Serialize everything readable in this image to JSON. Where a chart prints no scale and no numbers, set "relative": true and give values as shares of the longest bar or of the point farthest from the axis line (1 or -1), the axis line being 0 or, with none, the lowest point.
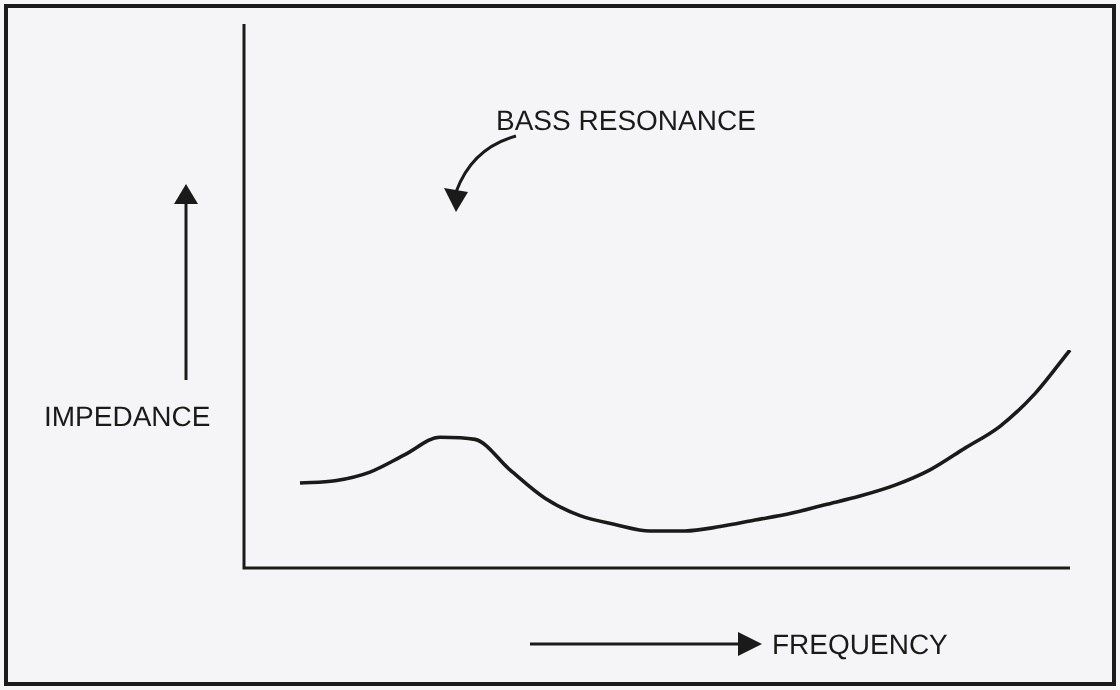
{
  "chart_data": {
    "type": "line",
    "relative": true,
    "xlabel": "FREQUENCY",
    "ylabel": "IMPEDANCE",
    "annotations": [
      "BASS RESONANCE"
    ],
    "categories": [
      null,
      null,
      null,
      null,
      null,
      null,
      null,
      null,
      null,
      null,
      null,
      null,
      null,
      null,
      null,
      null,
      null,
      null,
      null,
      null,
      null,
      null,
      null
    ],
    "series": [
      {
        "color": "#1a1a1a",
        "values": [
          0.39,
          0.4,
          0.44,
          0.52,
          0.6,
          0.59,
          0.45,
          0.32,
          0.24,
          0.2,
          0.17,
          0.17,
          0.19,
          0.22,
          0.25,
          0.29,
          0.33,
          0.38,
          0.45,
          0.55,
          0.65,
          0.8,
          1.0
        ]
      }
    ]
  }
}
